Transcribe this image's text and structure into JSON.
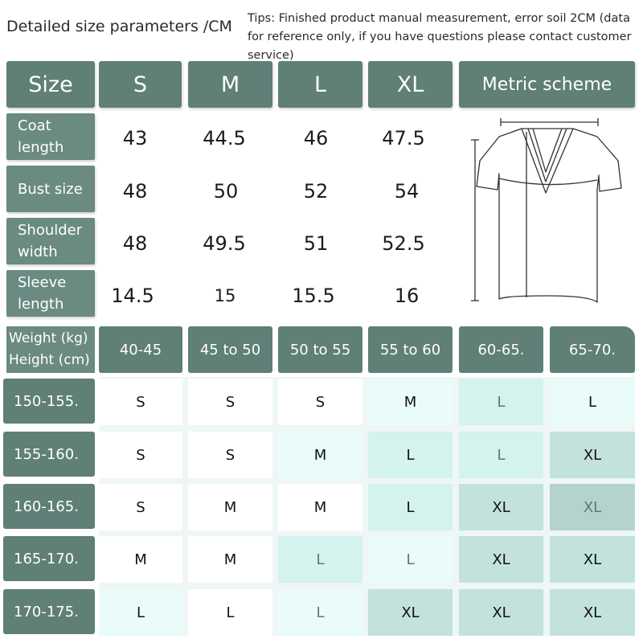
{
  "header": {
    "title": "Detailed size parameters /CM",
    "tips": "Tips: Finished product manual measurement, error soil 2CM (data for reference only, if you have questions please contact customer service)"
  },
  "size_table": {
    "corner": "Size",
    "sizes": [
      "S",
      "M",
      "L",
      "XL"
    ],
    "scheme_label": "Metric scheme",
    "rows": [
      {
        "label": "Coat length",
        "values": [
          "43",
          "44.5",
          "46",
          "47.5"
        ]
      },
      {
        "label": "Bust size",
        "values": [
          "48",
          "50",
          "52",
          "54"
        ]
      },
      {
        "label": "Shoulder width",
        "values": [
          "48",
          "49.5",
          "51",
          "52.5"
        ]
      },
      {
        "label": "Sleeve length",
        "values": [
          "14.5",
          "15",
          "15.5",
          "16"
        ]
      }
    ]
  },
  "recommend_table": {
    "corner_line1": "Weight (kg)",
    "corner_line2": "Height (cm)",
    "weights": [
      "40-45",
      "45 to 50",
      "50 to 55",
      "55 to 60",
      "60-65.",
      "65-70."
    ],
    "rows": [
      {
        "height": "150-155.",
        "sizes": [
          "S",
          "S",
          "S",
          "M",
          "L",
          "L"
        ]
      },
      {
        "height": "155-160.",
        "sizes": [
          "S",
          "S",
          "M",
          "L",
          "L",
          "XL"
        ]
      },
      {
        "height": "160-165.",
        "sizes": [
          "S",
          "M",
          "M",
          "L",
          "XL",
          "XL"
        ]
      },
      {
        "height": "165-170.",
        "sizes": [
          "M",
          "M",
          "L",
          "L",
          "XL",
          "XL"
        ]
      },
      {
        "height": "170-175.",
        "sizes": [
          "L",
          "L",
          "L",
          "XL",
          "XL",
          "XL"
        ]
      }
    ]
  },
  "colors": {
    "header_green": "#5f7f77",
    "row_header_green": "#6a8a82",
    "cell_shades": [
      "#ffffff",
      "#e9fcfa",
      "#d4f2ee",
      "#c3e2dd",
      "#b4d3cd"
    ]
  },
  "icons": {
    "diagram": "t-shirt-measurement-diagram"
  }
}
